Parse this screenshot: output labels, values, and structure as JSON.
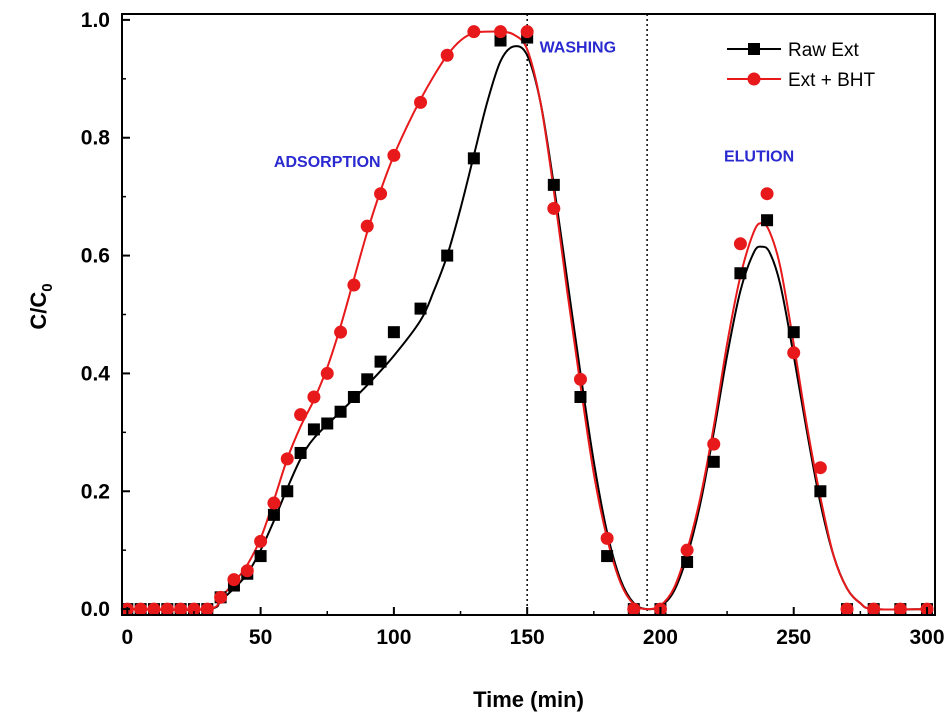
{
  "chart_data": {
    "type": "scatter",
    "xlabel": "Time (min)",
    "ylabel_main": "C/C",
    "ylabel_sub": "0",
    "xlim": [
      -2,
      303
    ],
    "ylim": [
      -0.01,
      1.01
    ],
    "x_ticks": [
      0,
      50,
      100,
      150,
      200,
      250,
      300
    ],
    "y_ticks": [
      0.0,
      0.2,
      0.4,
      0.6,
      0.8,
      1.0
    ],
    "y_tick_labels": [
      "0.0",
      "0.2",
      "0.4",
      "0.6",
      "0.8",
      "1.0"
    ],
    "vlines": [
      150,
      195
    ],
    "legend_position": "top-right",
    "annotations": [
      {
        "text": "ADSORPTION",
        "x": 75,
        "y": 0.75
      },
      {
        "text": "WASHING",
        "x": 169,
        "y": 0.945
      },
      {
        "text": "ELUTION",
        "x": 237,
        "y": 0.76
      }
    ],
    "series": [
      {
        "name": "Raw Ext",
        "color": "#000000",
        "marker": "square",
        "x": [
          0,
          5,
          10,
          15,
          20,
          25,
          30,
          35,
          40,
          45,
          50,
          55,
          60,
          65,
          70,
          75,
          80,
          85,
          90,
          95,
          100,
          110,
          120,
          130,
          140,
          150,
          160,
          170,
          180,
          190,
          200,
          210,
          220,
          230,
          240,
          250,
          260,
          270,
          280,
          290,
          300
        ],
        "y": [
          0,
          0,
          0,
          0,
          0,
          0,
          0,
          0.02,
          0.04,
          0.06,
          0.09,
          0.16,
          0.2,
          0.265,
          0.305,
          0.315,
          0.335,
          0.36,
          0.39,
          0.42,
          0.47,
          0.51,
          0.6,
          0.765,
          0.965,
          0.97,
          0.72,
          0.36,
          0.09,
          0,
          0,
          0.08,
          0.25,
          0.57,
          0.66,
          0.47,
          0.2,
          0,
          0,
          0,
          0
        ],
        "fit_x": [
          0,
          30,
          35,
          40,
          45,
          50,
          55,
          60,
          65,
          70,
          80,
          90,
          100,
          110,
          115,
          120,
          125,
          130,
          135,
          140,
          145,
          150,
          155,
          160,
          165,
          170,
          175,
          180,
          185,
          190,
          195,
          200,
          205,
          210,
          215,
          220,
          225,
          230,
          235,
          238,
          241,
          245,
          250,
          255,
          260,
          265,
          270,
          275,
          280,
          300
        ],
        "fit_y": [
          0,
          0,
          0.015,
          0.035,
          0.06,
          0.1,
          0.15,
          0.205,
          0.255,
          0.29,
          0.335,
          0.38,
          0.43,
          0.49,
          0.54,
          0.6,
          0.68,
          0.77,
          0.86,
          0.93,
          0.955,
          0.94,
          0.86,
          0.72,
          0.56,
          0.4,
          0.25,
          0.13,
          0.05,
          0.01,
          0,
          0.005,
          0.03,
          0.09,
          0.18,
          0.3,
          0.43,
          0.54,
          0.605,
          0.615,
          0.605,
          0.55,
          0.43,
          0.3,
          0.18,
          0.09,
          0.035,
          0.01,
          0,
          0
        ]
      },
      {
        "name": "Ext + BHT",
        "color": "#e8191b",
        "marker": "circle",
        "x": [
          0,
          5,
          10,
          15,
          20,
          25,
          30,
          35,
          40,
          45,
          50,
          55,
          60,
          65,
          70,
          75,
          80,
          85,
          90,
          95,
          100,
          110,
          120,
          130,
          140,
          150,
          160,
          170,
          180,
          190,
          200,
          210,
          220,
          230,
          240,
          250,
          260,
          270,
          280,
          290,
          300
        ],
        "y": [
          0,
          0,
          0,
          0,
          0,
          0,
          0,
          0.02,
          0.05,
          0.065,
          0.115,
          0.18,
          0.255,
          0.33,
          0.36,
          0.4,
          0.47,
          0.55,
          0.65,
          0.705,
          0.77,
          0.86,
          0.94,
          0.98,
          0.98,
          0.98,
          0.68,
          0.39,
          0.12,
          0,
          0,
          0.1,
          0.28,
          0.62,
          0.705,
          0.435,
          0.24,
          0,
          0,
          0,
          0
        ],
        "fit_x": [
          0,
          30,
          35,
          40,
          45,
          50,
          55,
          60,
          65,
          70,
          75,
          80,
          85,
          90,
          95,
          100,
          105,
          110,
          115,
          120,
          125,
          130,
          135,
          140,
          145,
          150,
          155,
          160,
          165,
          170,
          175,
          180,
          185,
          190,
          195,
          200,
          205,
          210,
          215,
          220,
          225,
          230,
          235,
          238,
          241,
          245,
          250,
          255,
          260,
          265,
          270,
          275,
          280,
          300
        ],
        "fit_y": [
          0,
          0,
          0.02,
          0.045,
          0.075,
          0.12,
          0.185,
          0.255,
          0.31,
          0.355,
          0.41,
          0.48,
          0.56,
          0.64,
          0.71,
          0.77,
          0.82,
          0.865,
          0.905,
          0.94,
          0.965,
          0.978,
          0.98,
          0.98,
          0.975,
          0.95,
          0.86,
          0.71,
          0.54,
          0.38,
          0.23,
          0.12,
          0.045,
          0.008,
          0,
          0.006,
          0.035,
          0.1,
          0.19,
          0.31,
          0.45,
          0.565,
          0.64,
          0.655,
          0.64,
          0.58,
          0.45,
          0.31,
          0.19,
          0.09,
          0.035,
          0.01,
          0,
          0
        ]
      }
    ]
  }
}
